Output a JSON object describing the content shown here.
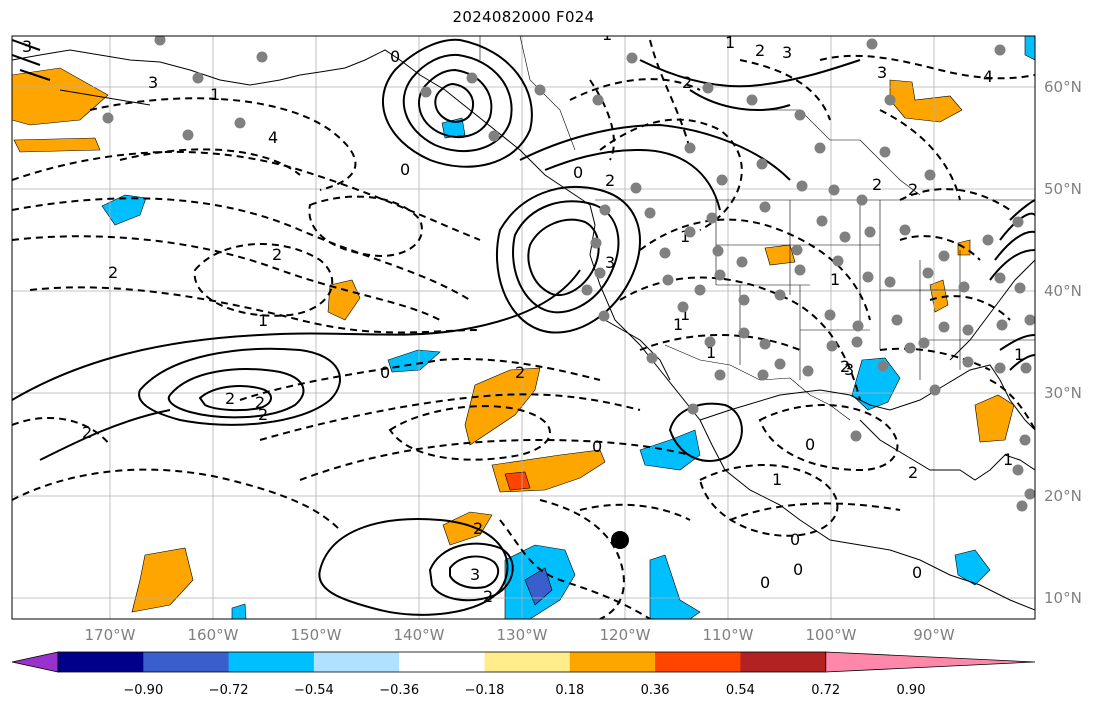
{
  "title": "2024082000 F024",
  "lon_ticks": [
    {
      "label": "170°W"
    },
    {
      "label": "160°W"
    },
    {
      "label": "150°W"
    },
    {
      "label": "140°W"
    },
    {
      "label": "130°W"
    },
    {
      "label": "120°W"
    },
    {
      "label": "110°W"
    },
    {
      "label": "100°W"
    },
    {
      "label": "90°W"
    }
  ],
  "lat_ticks": [
    {
      "label": "60°N"
    },
    {
      "label": "50°N"
    },
    {
      "label": "40°N"
    },
    {
      "label": "30°N"
    },
    {
      "label": "20°N"
    },
    {
      "label": "10°N"
    }
  ],
  "colorbar": {
    "labels": [
      "−0.90",
      "−0.72",
      "−0.54",
      "−0.36",
      "−0.18",
      "0.18",
      "0.36",
      "0.54",
      "0.72",
      "0.90"
    ],
    "colors": [
      "#9932CC",
      "#00008B",
      "#3A5FCD",
      "#00BFFF",
      "#B0E2FF",
      "#FFFFFF",
      "#FFEC8B",
      "#FFA500",
      "#FF4500",
      "#B22222",
      "#FF88AA"
    ]
  },
  "contour_labels": [
    "3",
    "1",
    "2",
    "2",
    "4",
    "0",
    "2",
    "2",
    "3",
    "2",
    "1",
    "0",
    "2",
    "3",
    "2",
    "1",
    "1",
    "0",
    "2",
    "3",
    "2",
    "2",
    "0",
    "1",
    "2",
    "0",
    "4",
    "3",
    "2",
    "1",
    "1",
    "0",
    "1",
    "0",
    "3",
    "2",
    "1",
    "1",
    "0",
    "2",
    "3",
    "0",
    "2",
    "0",
    "1",
    "2",
    "1"
  ],
  "colors": {
    "stations": "#808080",
    "marker": "#000000",
    "grid": "#b0b0b0",
    "coast": "#000000"
  }
}
